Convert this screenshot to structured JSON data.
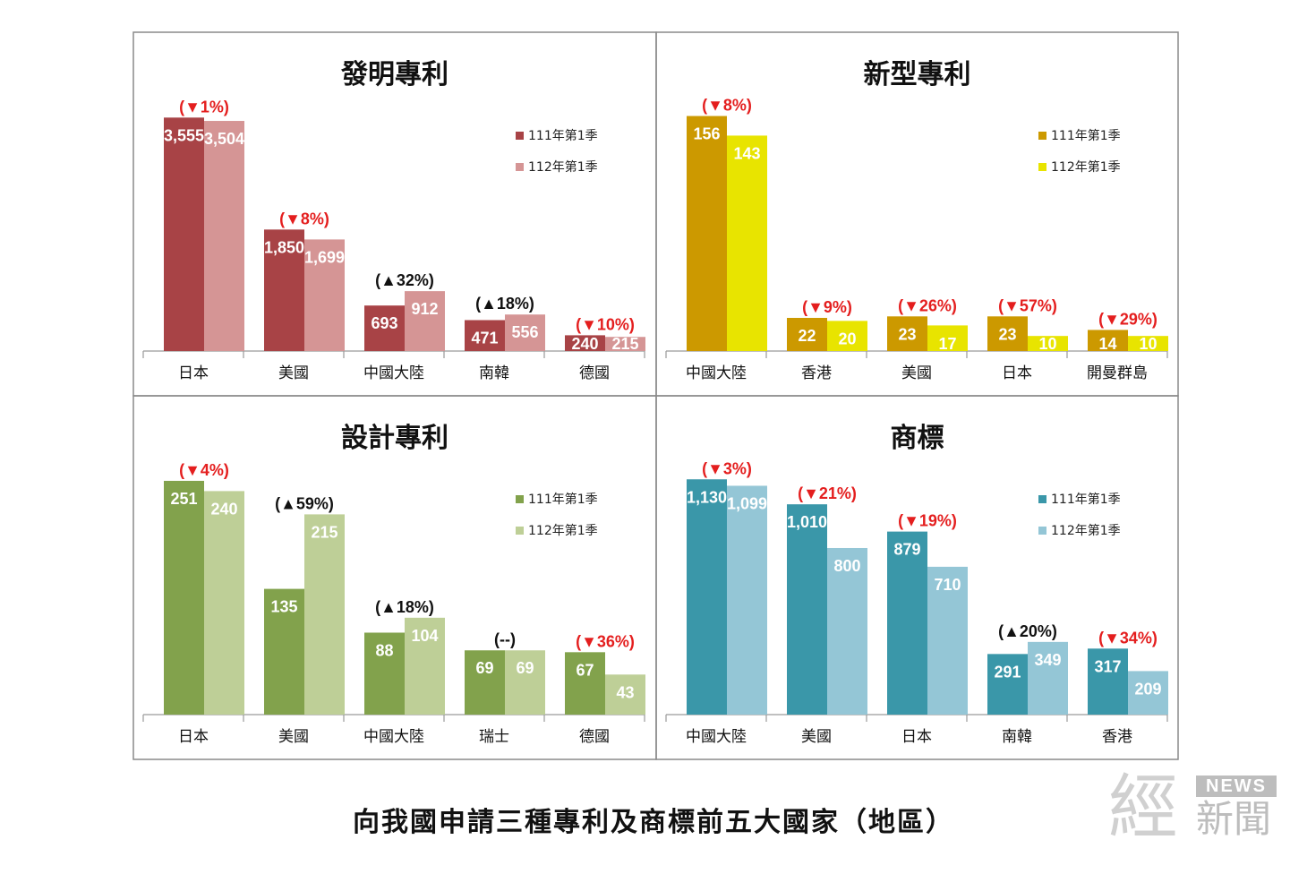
{
  "caption": "向我國申請三種專利及商標前五大國家（地區）",
  "logo": {
    "main": "經",
    "news": "NEWS",
    "sub": "新聞"
  },
  "chart_data": [
    {
      "type": "bar",
      "title": "發明專利",
      "categories": [
        "日本",
        "美國",
        "中國大陸",
        "南韓",
        "德國"
      ],
      "series": [
        {
          "name": "111年第1季",
          "values": [
            3555,
            1850,
            693,
            471,
            240
          ],
          "labels": [
            "3,555",
            "1,850",
            "693",
            "471",
            "240"
          ],
          "color": "#A84346"
        },
        {
          "name": "112年第1季",
          "values": [
            3504,
            1699,
            912,
            556,
            215
          ],
          "labels": [
            "3,504",
            "1,699",
            "912",
            "556",
            "215"
          ],
          "color": "#D59595"
        }
      ],
      "changes": [
        "(▼1%)",
        "(▼8%)",
        "(▲32%)",
        "(▲18%)",
        "(▼10%)"
      ],
      "change_colors": [
        "#E41E1E",
        "#E41E1E",
        "#111111",
        "#111111",
        "#E41E1E"
      ],
      "ylim": [
        0,
        3900
      ],
      "legend_position": "top-right"
    },
    {
      "type": "bar",
      "title": "新型專利",
      "categories": [
        "中國大陸",
        "香港",
        "美國",
        "日本",
        "開曼群島"
      ],
      "series": [
        {
          "name": "111年第1季",
          "values": [
            156,
            22,
            23,
            23,
            14
          ],
          "labels": [
            "156",
            "22",
            "23",
            "23",
            "14"
          ],
          "color": "#CC9900"
        },
        {
          "name": "112年第1季",
          "values": [
            143,
            20,
            17,
            10,
            10
          ],
          "labels": [
            "143",
            "20",
            "17",
            "10",
            "10"
          ],
          "color": "#E8E400"
        }
      ],
      "changes": [
        "(▼8%)",
        "(▼9%)",
        "(▼26%)",
        "(▼57%)",
        "(▼29%)"
      ],
      "change_colors": [
        "#E41E1E",
        "#E41E1E",
        "#E41E1E",
        "#E41E1E",
        "#E41E1E"
      ],
      "ylim": [
        0,
        170
      ],
      "legend_position": "top-right"
    },
    {
      "type": "bar",
      "title": "設計專利",
      "categories": [
        "日本",
        "美國",
        "中國大陸",
        "瑞士",
        "德國"
      ],
      "series": [
        {
          "name": "111年第1季",
          "values": [
            251,
            135,
            88,
            69,
            67
          ],
          "labels": [
            "251",
            "135",
            "88",
            "69",
            "67"
          ],
          "color": "#82A24C"
        },
        {
          "name": "112年第1季",
          "values": [
            240,
            215,
            104,
            69,
            43
          ],
          "labels": [
            "240",
            "215",
            "104",
            "69",
            "43"
          ],
          "color": "#BECF97"
        }
      ],
      "changes": [
        "(▼4%)",
        "(▲59%)",
        "(▲18%)",
        "(--)",
        "(▼36%)"
      ],
      "change_colors": [
        "#E41E1E",
        "#111111",
        "#111111",
        "#111111",
        "#E41E1E"
      ],
      "ylim": [
        0,
        275
      ],
      "legend_position": "top-right"
    },
    {
      "type": "bar",
      "title": "商標",
      "categories": [
        "中國大陸",
        "美國",
        "日本",
        "南韓",
        "香港"
      ],
      "series": [
        {
          "name": "111年第1季",
          "values": [
            1130,
            1010,
            879,
            291,
            317
          ],
          "labels": [
            "1,130",
            "1,010",
            "879",
            "291",
            "317"
          ],
          "color": "#3A97A9"
        },
        {
          "name": "112年第1季",
          "values": [
            1099,
            800,
            710,
            349,
            209
          ],
          "labels": [
            "1,099",
            "800",
            "710",
            "349",
            "209"
          ],
          "color": "#94C6D6"
        }
      ],
      "changes": [
        "(▼3%)",
        "(▼21%)",
        "(▼19%)",
        "(▲20%)",
        "(▼34%)"
      ],
      "change_colors": [
        "#E41E1E",
        "#E41E1E",
        "#E41E1E",
        "#111111",
        "#E41E1E"
      ],
      "ylim": [
        0,
        1230
      ],
      "legend_position": "top-right"
    }
  ]
}
